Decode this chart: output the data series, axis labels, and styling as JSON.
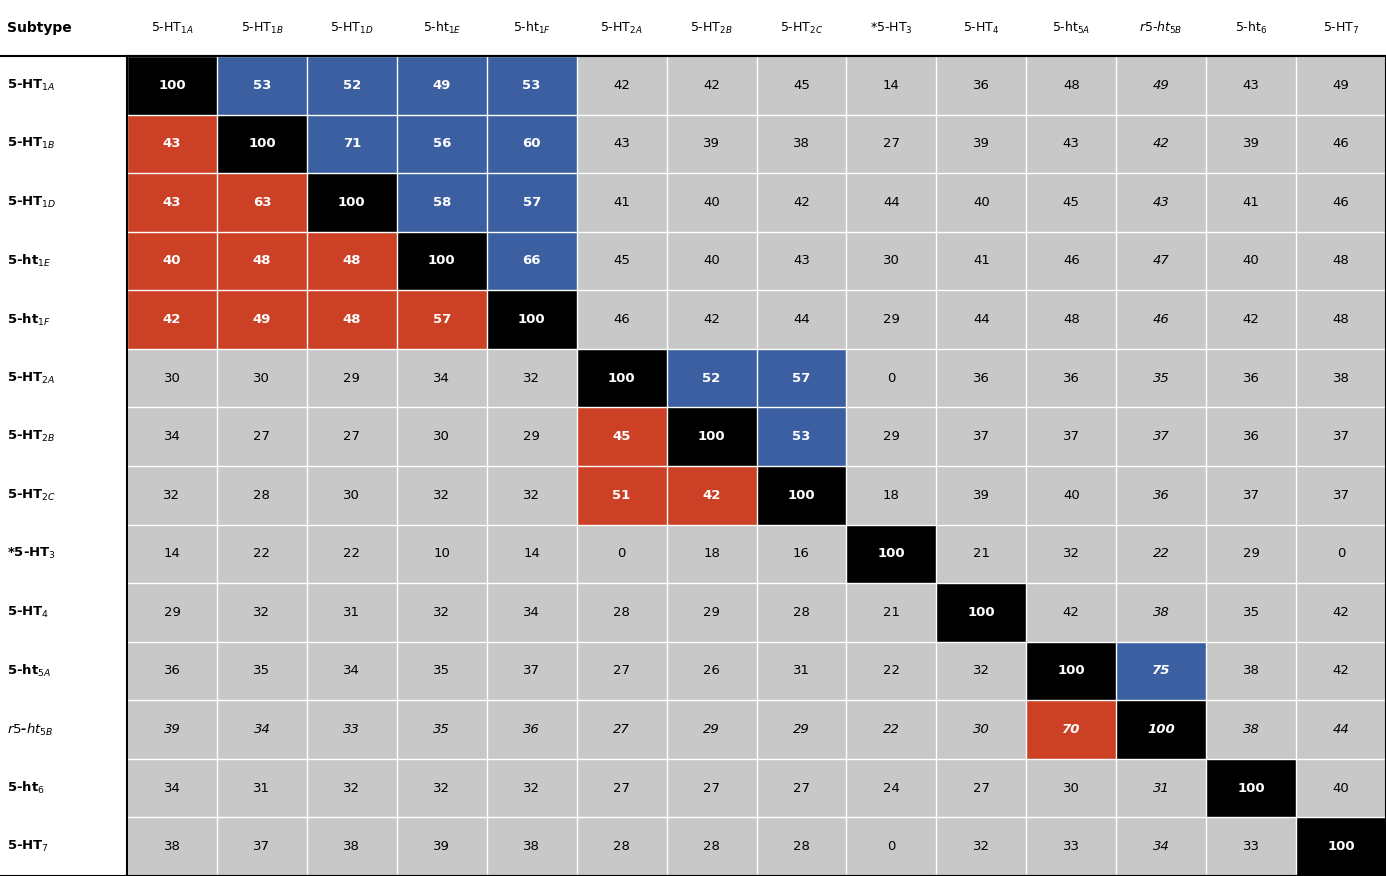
{
  "data": [
    [
      100,
      53,
      52,
      49,
      53,
      42,
      42,
      45,
      14,
      36,
      48,
      49,
      43,
      49
    ],
    [
      43,
      100,
      71,
      56,
      60,
      43,
      39,
      38,
      27,
      39,
      43,
      42,
      39,
      46
    ],
    [
      43,
      63,
      100,
      58,
      57,
      41,
      40,
      42,
      44,
      40,
      45,
      43,
      41,
      46
    ],
    [
      40,
      48,
      48,
      100,
      66,
      45,
      40,
      43,
      30,
      41,
      46,
      47,
      40,
      48
    ],
    [
      42,
      49,
      48,
      57,
      100,
      46,
      42,
      44,
      29,
      44,
      48,
      46,
      42,
      48
    ],
    [
      30,
      30,
      29,
      34,
      32,
      100,
      52,
      57,
      0,
      36,
      36,
      35,
      36,
      38
    ],
    [
      34,
      27,
      27,
      30,
      29,
      45,
      100,
      53,
      29,
      37,
      37,
      37,
      36,
      37
    ],
    [
      32,
      28,
      30,
      32,
      32,
      51,
      42,
      100,
      18,
      39,
      40,
      36,
      37,
      37
    ],
    [
      14,
      22,
      22,
      10,
      14,
      0,
      18,
      16,
      100,
      21,
      32,
      22,
      29,
      0
    ],
    [
      29,
      32,
      31,
      32,
      34,
      28,
      29,
      28,
      21,
      100,
      42,
      38,
      35,
      42
    ],
    [
      36,
      35,
      34,
      35,
      37,
      27,
      26,
      31,
      22,
      32,
      100,
      75,
      38,
      42
    ],
    [
      39,
      34,
      33,
      35,
      36,
      27,
      29,
      29,
      22,
      30,
      70,
      100,
      38,
      44
    ],
    [
      34,
      31,
      32,
      32,
      32,
      27,
      27,
      27,
      24,
      27,
      30,
      31,
      100,
      40
    ],
    [
      38,
      37,
      38,
      39,
      38,
      28,
      28,
      28,
      0,
      32,
      33,
      34,
      33,
      100
    ]
  ],
  "color_black": "#000000",
  "color_blue": "#3B5FA0",
  "color_red": "#CC4125",
  "color_gray": "#C8C8C8",
  "color_white": "#FFFFFF",
  "background": "#FFFFFF",
  "header_line_color": "#000000",
  "grid_color": "#FFFFFF",
  "cell_text_bold_color": "#FFFFFF",
  "cell_text_gray_color": "#000000"
}
